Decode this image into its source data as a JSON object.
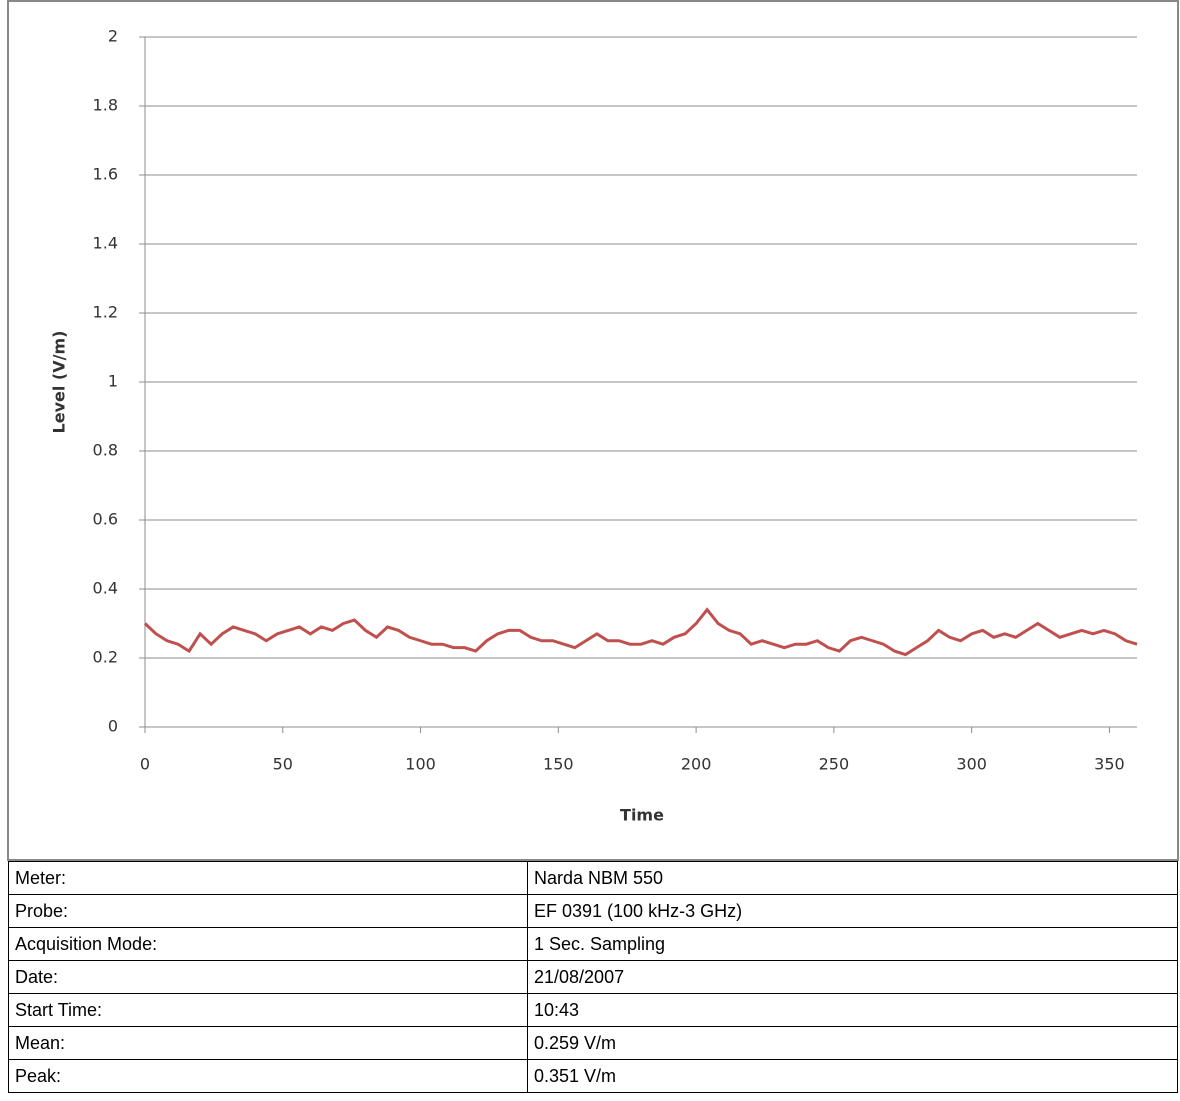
{
  "chart_data": {
    "type": "line",
    "ylabel": "Level (V/m)",
    "xlabel": "Time",
    "xlim": [
      0,
      360
    ],
    "xticks": [
      0,
      50,
      100,
      150,
      200,
      250,
      300,
      350
    ],
    "ylim": [
      0,
      2
    ],
    "yticks": [
      0,
      0.2,
      0.4,
      0.6,
      0.8,
      1,
      1.2,
      1.4,
      1.6,
      1.8,
      2
    ],
    "grid": true,
    "x": [
      0,
      4,
      8,
      12,
      16,
      20,
      24,
      28,
      32,
      36,
      40,
      44,
      48,
      52,
      56,
      60,
      64,
      68,
      72,
      76,
      80,
      84,
      88,
      92,
      96,
      100,
      104,
      108,
      112,
      116,
      120,
      124,
      128,
      132,
      136,
      140,
      144,
      148,
      152,
      156,
      160,
      164,
      168,
      172,
      176,
      180,
      184,
      188,
      192,
      196,
      200,
      204,
      208,
      212,
      216,
      220,
      224,
      228,
      232,
      236,
      240,
      244,
      248,
      252,
      256,
      260,
      264,
      268,
      272,
      276,
      280,
      284,
      288,
      292,
      296,
      300,
      304,
      308,
      312,
      316,
      320,
      324,
      328,
      332,
      336,
      340,
      344,
      348,
      352,
      356,
      360
    ],
    "series": [
      {
        "color": "#c0504d",
        "values": [
          0.3,
          0.27,
          0.25,
          0.24,
          0.22,
          0.27,
          0.24,
          0.27,
          0.29,
          0.28,
          0.27,
          0.25,
          0.27,
          0.28,
          0.29,
          0.27,
          0.29,
          0.28,
          0.3,
          0.31,
          0.28,
          0.26,
          0.29,
          0.28,
          0.26,
          0.25,
          0.24,
          0.24,
          0.23,
          0.23,
          0.22,
          0.25,
          0.27,
          0.28,
          0.28,
          0.26,
          0.25,
          0.25,
          0.24,
          0.23,
          0.25,
          0.27,
          0.25,
          0.25,
          0.24,
          0.24,
          0.25,
          0.24,
          0.26,
          0.27,
          0.3,
          0.34,
          0.3,
          0.28,
          0.27,
          0.24,
          0.25,
          0.24,
          0.23,
          0.24,
          0.24,
          0.25,
          0.23,
          0.22,
          0.25,
          0.26,
          0.25,
          0.24,
          0.22,
          0.21,
          0.23,
          0.25,
          0.28,
          0.26,
          0.25,
          0.27,
          0.28,
          0.26,
          0.27,
          0.26,
          0.28,
          0.3,
          0.28,
          0.26,
          0.27,
          0.28,
          0.27,
          0.28,
          0.27,
          0.25,
          0.24
        ]
      }
    ]
  },
  "table": {
    "rows": [
      [
        "Meter:",
        "Narda NBM 550"
      ],
      [
        "Probe:",
        "EF 0391 (100 kHz-3 GHz)"
      ],
      [
        "Acquisition Mode:",
        "1 Sec. Sampling"
      ],
      [
        "Date:",
        "21/08/2007"
      ],
      [
        "Start Time:",
        "10:43"
      ],
      [
        "Mean:",
        "0.259 V/m"
      ],
      [
        "Peak:",
        "0.351 V/m"
      ]
    ]
  }
}
